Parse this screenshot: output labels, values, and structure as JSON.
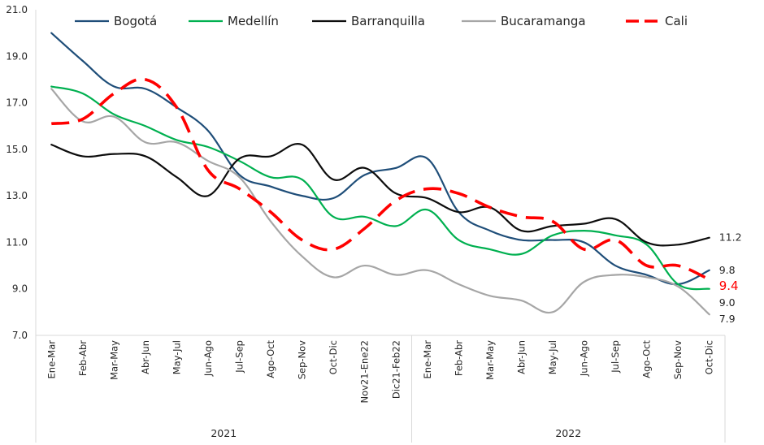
{
  "chart_data": {
    "type": "line",
    "title": "",
    "xlabel": "",
    "ylabel": "",
    "ylim": [
      7.0,
      21.0
    ],
    "yticks": [
      "7.0",
      "9.0",
      "11.0",
      "13.0",
      "15.0",
      "17.0",
      "19.0",
      "21.0"
    ],
    "grid": false,
    "legend_position": "top",
    "categories": [
      "Ene-Mar",
      "Feb-Abr",
      "Mar-May",
      "Abr-Jun",
      "May-Jul",
      "Jun-Ago",
      "Jul-Sep",
      "Ago-Oct",
      "Sep-Nov",
      "Oct-Dic",
      "Nov21-Ene22",
      "Dic21-Feb22",
      "Ene-Mar",
      "Feb-Abr",
      "Mar-May",
      "Abr-Jun",
      "May-Jul",
      "Jun-Ago",
      "Jul-Sep",
      "Ago-Oct",
      "Sep-Nov",
      "Oct-Dic"
    ],
    "groups": [
      {
        "label": "2021",
        "start": 0,
        "end": 11
      },
      {
        "label": "2022",
        "start": 12,
        "end": 21
      }
    ],
    "series": [
      {
        "name": "Bogotá",
        "color": "#1f4e79",
        "dashed": false,
        "values": [
          20.0,
          18.8,
          17.7,
          17.6,
          16.8,
          15.8,
          13.9,
          13.4,
          13.0,
          12.9,
          13.9,
          14.2,
          14.6,
          12.3,
          11.5,
          11.1,
          11.1,
          11.0,
          10.0,
          9.6,
          9.2,
          9.8
        ],
        "end_label": "9.8",
        "end_label_color": "#262626"
      },
      {
        "name": "Medellín",
        "color": "#00b050",
        "dashed": false,
        "values": [
          17.7,
          17.4,
          16.5,
          16.0,
          15.4,
          15.1,
          14.5,
          13.8,
          13.7,
          12.1,
          12.1,
          11.7,
          12.4,
          11.1,
          10.7,
          10.5,
          11.3,
          11.5,
          11.3,
          10.9,
          9.2,
          9.0
        ],
        "end_label": "9.0",
        "end_label_color": "#262626"
      },
      {
        "name": "Barranquilla",
        "color": "#0d0d0d",
        "dashed": false,
        "values": [
          15.2,
          14.7,
          14.8,
          14.7,
          13.8,
          13.0,
          14.6,
          14.7,
          15.2,
          13.7,
          14.2,
          13.1,
          12.9,
          12.3,
          12.5,
          11.5,
          11.7,
          11.8,
          12.0,
          11.0,
          10.9,
          11.2
        ],
        "end_label": "11.2",
        "end_label_color": "#262626"
      },
      {
        "name": "Bucaramanga",
        "color": "#a6a6a6",
        "dashed": false,
        "values": [
          17.6,
          16.2,
          16.4,
          15.3,
          15.3,
          14.5,
          13.8,
          11.9,
          10.4,
          9.5,
          10.0,
          9.6,
          9.8,
          9.2,
          8.7,
          8.5,
          8.0,
          9.3,
          9.6,
          9.5,
          9.1,
          7.9
        ],
        "end_label": "7.9",
        "end_label_color": "#262626"
      },
      {
        "name": "Cali",
        "color": "#ff0000",
        "dashed": true,
        "values": [
          16.1,
          16.3,
          17.4,
          18.0,
          16.8,
          14.1,
          13.3,
          12.3,
          11.1,
          10.7,
          11.6,
          12.8,
          13.3,
          13.1,
          12.5,
          12.1,
          11.9,
          10.7,
          11.1,
          10.0,
          10.0,
          9.4
        ],
        "end_label": "9.4",
        "end_label_color": "#ff0000"
      }
    ]
  }
}
